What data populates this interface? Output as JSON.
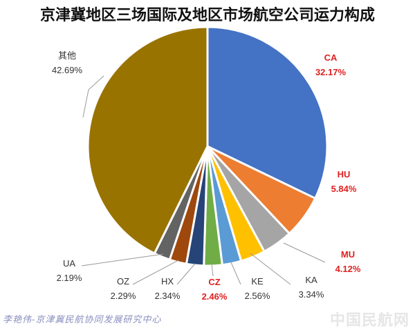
{
  "chart_data": {
    "type": "pie",
    "title": "京津冀地区三场国际及地区市场航空公司运力构成",
    "slices": [
      {
        "name": "CA",
        "value": 32.17,
        "label": "32.17%",
        "color": "#4472C4",
        "highlight": true
      },
      {
        "name": "HU",
        "value": 5.84,
        "label": "5.84%",
        "color": "#ED7D31",
        "highlight": true
      },
      {
        "name": "MU",
        "value": 4.12,
        "label": "4.12%",
        "color": "#A5A5A5",
        "highlight": true
      },
      {
        "name": "KA",
        "value": 3.34,
        "label": "3.34%",
        "color": "#FFC000",
        "highlight": false
      },
      {
        "name": "KE",
        "value": 2.56,
        "label": "2.56%",
        "color": "#5B9BD5",
        "highlight": false
      },
      {
        "name": "CZ",
        "value": 2.46,
        "label": "2.46%",
        "color": "#70AD47",
        "highlight": true
      },
      {
        "name": "HX",
        "value": 2.34,
        "label": "2.34%",
        "color": "#264478",
        "highlight": false
      },
      {
        "name": "OZ",
        "value": 2.29,
        "label": "2.29%",
        "color": "#9E480E",
        "highlight": false
      },
      {
        "name": "UA",
        "value": 2.19,
        "label": "2.19%",
        "color": "#636363",
        "highlight": false
      },
      {
        "name": "其他",
        "value": 42.69,
        "label": "42.69%",
        "color": "#997300",
        "highlight": false
      }
    ],
    "label_color": "#333333",
    "highlight_label_color": "#E02020"
  },
  "credit": "李艳伟-京津冀民航协同发展研究中心",
  "watermark": "中国民航网"
}
